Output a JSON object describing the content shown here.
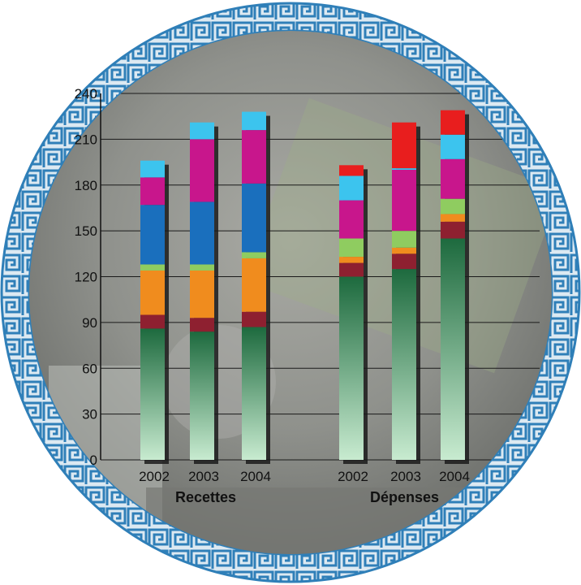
{
  "chart_data": {
    "type": "bar",
    "stacked": true,
    "ylim": [
      0,
      240
    ],
    "yticks": [
      "0",
      "30",
      "60",
      "90",
      "120",
      "150",
      "180",
      "210",
      "240"
    ],
    "grid": true,
    "groups": [
      {
        "label": "Recettes",
        "bars": [
          {
            "year": "2002",
            "segments": [
              86,
              9,
              29,
              4,
              39,
              18,
              11
            ]
          },
          {
            "year": "2003",
            "segments": [
              84,
              9,
              31,
              4,
              41,
              41,
              11
            ]
          },
          {
            "year": "2004",
            "segments": [
              87,
              10,
              35,
              4,
              45,
              35,
              12
            ]
          }
        ],
        "colors": [
          "#2e7a4e",
          "#8e2030",
          "#f08c1e",
          "#8fcc60",
          "#1a6fbd",
          "#c8168c",
          "#3cc4ee"
        ]
      },
      {
        "label": "Dépenses",
        "bars": [
          {
            "year": "2002",
            "segments": [
              120,
              9,
              4,
              12,
              25,
              16,
              7
            ]
          },
          {
            "year": "2003",
            "segments": [
              125,
              10,
              4,
              11,
              40,
              1,
              30
            ]
          },
          {
            "year": "2004",
            "segments": [
              145,
              11,
              5,
              10,
              26,
              16,
              16
            ]
          }
        ],
        "colors": [
          "#2e7a4e",
          "#8e2030",
          "#f08c1e",
          "#8fcc60",
          "#c8168c",
          "#3cc4ee",
          "#e81e1e"
        ]
      }
    ]
  },
  "decor": {
    "background_color": "#8a8c88",
    "border_color": "#3f8fc4",
    "grid_color": "#1a1a1a"
  }
}
